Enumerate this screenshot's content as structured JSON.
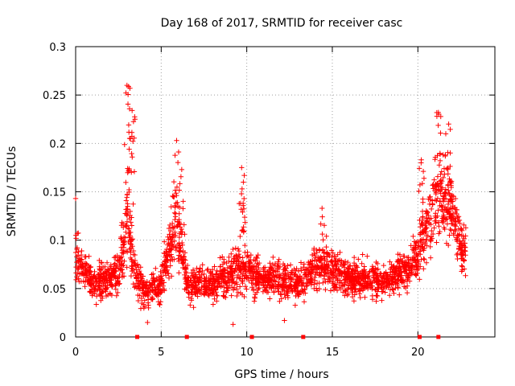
{
  "chart_data": {
    "type": "scatter",
    "title": "Day 168 of 2017, SRMTID for receiver casc",
    "xlabel": "GPS time / hours",
    "ylabel": "SRMTID / TECUs",
    "xlim": [
      0,
      24.5
    ],
    "ylim": [
      0,
      0.3
    ],
    "grid": true,
    "x_ticks": [
      0,
      5,
      10,
      15,
      20
    ],
    "x_tick_labels": [
      "0",
      "5",
      "10",
      "15",
      "20"
    ],
    "y_ticks": [
      0,
      0.05,
      0.1,
      0.15,
      0.2,
      0.25,
      0.3
    ],
    "y_tick_labels": [
      "0",
      "0.05",
      "0.1",
      "0.15",
      "0.2",
      "0.25",
      "0.3"
    ],
    "marker": "+",
    "color": "#ff0000",
    "series_name": "SRMTID",
    "baseline_markers_x": [
      3.6,
      6.5,
      10.3,
      13.3,
      20.1,
      21.2
    ],
    "density_profile": [
      {
        "x": 0.0,
        "mean": 0.08,
        "spread": 0.025
      },
      {
        "x": 0.3,
        "mean": 0.075,
        "spread": 0.02
      },
      {
        "x": 1.0,
        "mean": 0.055,
        "spread": 0.02
      },
      {
        "x": 2.0,
        "mean": 0.06,
        "spread": 0.02
      },
      {
        "x": 2.6,
        "mean": 0.07,
        "spread": 0.025
      },
      {
        "x": 3.0,
        "mean": 0.13,
        "spread": 0.05
      },
      {
        "x": 3.4,
        "mean": 0.07,
        "spread": 0.025
      },
      {
        "x": 4.0,
        "mean": 0.045,
        "spread": 0.02
      },
      {
        "x": 5.0,
        "mean": 0.055,
        "spread": 0.02
      },
      {
        "x": 5.9,
        "mean": 0.12,
        "spread": 0.045
      },
      {
        "x": 6.5,
        "mean": 0.055,
        "spread": 0.02
      },
      {
        "x": 8.0,
        "mean": 0.055,
        "spread": 0.018
      },
      {
        "x": 9.5,
        "mean": 0.07,
        "spread": 0.03
      },
      {
        "x": 11.0,
        "mean": 0.06,
        "spread": 0.02
      },
      {
        "x": 13.0,
        "mean": 0.055,
        "spread": 0.02
      },
      {
        "x": 14.4,
        "mean": 0.075,
        "spread": 0.03
      },
      {
        "x": 16.0,
        "mean": 0.06,
        "spread": 0.02
      },
      {
        "x": 18.0,
        "mean": 0.06,
        "spread": 0.02
      },
      {
        "x": 19.5,
        "mean": 0.07,
        "spread": 0.02
      },
      {
        "x": 20.3,
        "mean": 0.1,
        "spread": 0.04
      },
      {
        "x": 21.2,
        "mean": 0.15,
        "spread": 0.045
      },
      {
        "x": 22.0,
        "mean": 0.13,
        "spread": 0.035
      },
      {
        "x": 22.6,
        "mean": 0.09,
        "spread": 0.03
      }
    ],
    "peaks": [
      {
        "x": 3.0,
        "y": 0.26
      },
      {
        "x": 3.3,
        "y": 0.234
      },
      {
        "x": 3.2,
        "y": 0.205
      },
      {
        "x": 5.9,
        "y": 0.203
      },
      {
        "x": 6.2,
        "y": 0.173
      },
      {
        "x": 9.7,
        "y": 0.175
      },
      {
        "x": 9.8,
        "y": 0.16
      },
      {
        "x": 14.4,
        "y": 0.133
      },
      {
        "x": 0.0,
        "y": 0.143
      },
      {
        "x": 20.2,
        "y": 0.183
      },
      {
        "x": 21.2,
        "y": 0.232
      },
      {
        "x": 21.8,
        "y": 0.22
      },
      {
        "x": 21.6,
        "y": 0.188
      }
    ],
    "lows": [
      {
        "x": 9.2,
        "y": 0.013
      },
      {
        "x": 12.2,
        "y": 0.017
      },
      {
        "x": 4.2,
        "y": 0.015
      }
    ]
  }
}
